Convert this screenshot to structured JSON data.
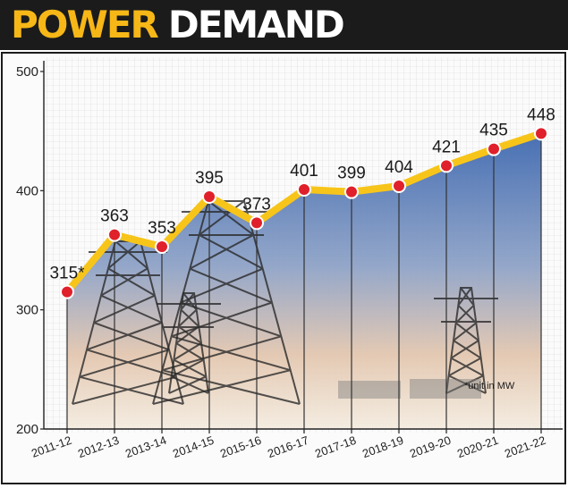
{
  "header": {
    "title_word1": "POWER",
    "title_word2": "DEMAND"
  },
  "chart_data": {
    "type": "line",
    "title": "POWER DEMAND",
    "categories": [
      "2011-12",
      "2012-13",
      "2013-14",
      "2014-15",
      "2015-16",
      "2016-17",
      "2017-18",
      "2018-19",
      "2019-20",
      "2020-21",
      "2021-22"
    ],
    "values": [
      315,
      363,
      353,
      395,
      373,
      401,
      399,
      404,
      421,
      435,
      448
    ],
    "data_labels": [
      "315*",
      "363",
      "353",
      "395",
      "373",
      "401",
      "399",
      "404",
      "421",
      "435",
      "448"
    ],
    "ylim": [
      200,
      500
    ],
    "yticks": [
      200,
      300,
      400,
      500
    ],
    "grid": true,
    "note": "*unit in MW",
    "colors": {
      "line": "#f7c51a",
      "marker": "#e0202a",
      "marker_outline": "#ffffff",
      "header_bg": "#1b1b1b",
      "title_accent": "#f6b717"
    }
  }
}
